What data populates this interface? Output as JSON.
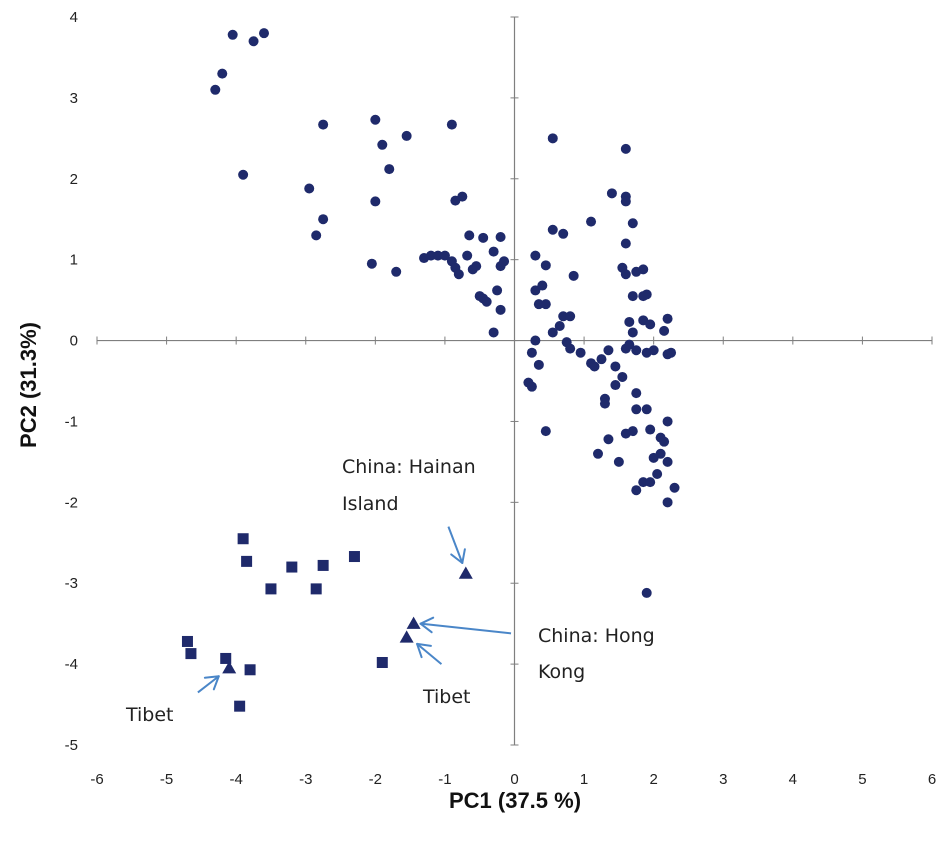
{
  "chart_data": {
    "type": "scatter",
    "title": "",
    "xlabel": "PC1 (37.5 %)",
    "ylabel": "PC2 (31.3%)",
    "xlim": [
      -6,
      6
    ],
    "ylim": [
      -5,
      4
    ],
    "x_ticks": [
      "-6",
      "-5",
      "-4",
      "-3",
      "-2",
      "-1",
      "0",
      "1",
      "2",
      "3",
      "4",
      "5",
      "6"
    ],
    "y_ticks": [
      "4",
      "3",
      "2",
      "1",
      "0",
      "-1",
      "-2",
      "-3",
      "-4",
      "-5"
    ],
    "grid": false,
    "legend": "none",
    "colors": {
      "markers": "#1f2a6b",
      "arrows": "#4a86c8",
      "axes": "#7f7f7f",
      "text": "#222222"
    },
    "series": [
      {
        "marker": "circle",
        "points": [
          [
            -4.3,
            3.1
          ],
          [
            -4.2,
            3.3
          ],
          [
            -4.05,
            3.78
          ],
          [
            -3.75,
            3.7
          ],
          [
            -3.6,
            3.8
          ],
          [
            -3.9,
            2.05
          ],
          [
            -2.75,
            2.67
          ],
          [
            -2.95,
            1.88
          ],
          [
            -2.75,
            1.5
          ],
          [
            -2.85,
            1.3
          ],
          [
            -2.0,
            2.73
          ],
          [
            -1.9,
            2.42
          ],
          [
            -1.8,
            2.12
          ],
          [
            -1.55,
            2.53
          ],
          [
            -2.0,
            1.72
          ],
          [
            -2.05,
            0.95
          ],
          [
            -1.7,
            0.85
          ],
          [
            -0.9,
            2.67
          ],
          [
            -0.75,
            1.78
          ],
          [
            -0.85,
            1.73
          ],
          [
            -1.3,
            1.02
          ],
          [
            -1.2,
            1.05
          ],
          [
            -1.1,
            1.05
          ],
          [
            -1.0,
            1.05
          ],
          [
            -0.9,
            0.98
          ],
          [
            -0.85,
            0.9
          ],
          [
            -0.8,
            0.82
          ],
          [
            -0.65,
            1.3
          ],
          [
            -0.68,
            1.05
          ],
          [
            -0.6,
            0.88
          ],
          [
            -0.55,
            0.92
          ],
          [
            -0.45,
            1.27
          ],
          [
            -0.3,
            1.1
          ],
          [
            -0.2,
            1.28
          ],
          [
            -0.2,
            0.92
          ],
          [
            -0.15,
            0.98
          ],
          [
            -0.25,
            0.62
          ],
          [
            -0.2,
            0.38
          ],
          [
            -0.5,
            0.55
          ],
          [
            -0.45,
            0.52
          ],
          [
            -0.4,
            0.48
          ],
          [
            -0.3,
            0.1
          ],
          [
            0.55,
            2.5
          ],
          [
            0.3,
            1.05
          ],
          [
            0.45,
            0.93
          ],
          [
            0.55,
            1.37
          ],
          [
            0.7,
            1.32
          ],
          [
            0.3,
            0.62
          ],
          [
            0.4,
            0.68
          ],
          [
            0.35,
            0.45
          ],
          [
            0.45,
            0.45
          ],
          [
            0.55,
            0.1
          ],
          [
            0.65,
            0.18
          ],
          [
            0.7,
            0.3
          ],
          [
            0.8,
            0.3
          ],
          [
            0.85,
            0.8
          ],
          [
            0.3,
            0.0
          ],
          [
            0.25,
            -0.15
          ],
          [
            0.35,
            -0.3
          ],
          [
            0.75,
            -0.02
          ],
          [
            0.8,
            -0.1
          ],
          [
            0.95,
            -0.15
          ],
          [
            0.2,
            -0.52
          ],
          [
            0.25,
            -0.57
          ],
          [
            0.45,
            -1.12
          ],
          [
            1.1,
            1.47
          ],
          [
            1.4,
            1.82
          ],
          [
            1.6,
            2.37
          ],
          [
            1.6,
            1.78
          ],
          [
            1.6,
            1.72
          ],
          [
            1.7,
            1.45
          ],
          [
            1.6,
            1.2
          ],
          [
            1.55,
            0.9
          ],
          [
            1.6,
            0.82
          ],
          [
            1.75,
            0.85
          ],
          [
            1.85,
            0.88
          ],
          [
            1.9,
            0.57
          ],
          [
            1.85,
            0.55
          ],
          [
            1.7,
            0.55
          ],
          [
            1.65,
            0.23
          ],
          [
            1.7,
            0.1
          ],
          [
            1.85,
            0.25
          ],
          [
            1.95,
            0.2
          ],
          [
            2.15,
            0.12
          ],
          [
            2.2,
            0.27
          ],
          [
            1.1,
            -0.28
          ],
          [
            1.15,
            -0.32
          ],
          [
            1.25,
            -0.23
          ],
          [
            1.35,
            -0.12
          ],
          [
            1.45,
            -0.32
          ],
          [
            1.6,
            -0.1
          ],
          [
            1.65,
            -0.05
          ],
          [
            1.75,
            -0.12
          ],
          [
            1.9,
            -0.15
          ],
          [
            2.0,
            -0.12
          ],
          [
            2.2,
            -0.17
          ],
          [
            2.25,
            -0.15
          ],
          [
            1.2,
            -1.4
          ],
          [
            1.3,
            -0.72
          ],
          [
            1.3,
            -0.78
          ],
          [
            1.35,
            -1.22
          ],
          [
            1.45,
            -0.55
          ],
          [
            1.55,
            -0.45
          ],
          [
            1.6,
            -1.15
          ],
          [
            1.7,
            -1.12
          ],
          [
            1.75,
            -0.65
          ],
          [
            1.75,
            -0.85
          ],
          [
            1.9,
            -0.85
          ],
          [
            1.95,
            -1.1
          ],
          [
            2.1,
            -1.2
          ],
          [
            2.15,
            -1.25
          ],
          [
            2.2,
            -1.0
          ],
          [
            2.05,
            -1.65
          ],
          [
            2.1,
            -1.4
          ],
          [
            2.2,
            -1.5
          ],
          [
            1.5,
            -1.5
          ],
          [
            1.75,
            -1.85
          ],
          [
            1.85,
            -1.75
          ],
          [
            1.95,
            -1.75
          ],
          [
            2.0,
            -1.45
          ],
          [
            2.2,
            -2.0
          ],
          [
            2.3,
            -1.82
          ],
          [
            1.9,
            -3.12
          ]
        ]
      },
      {
        "marker": "square",
        "points": [
          [
            -3.9,
            -2.45
          ],
          [
            -3.85,
            -2.73
          ],
          [
            -3.5,
            -3.07
          ],
          [
            -3.2,
            -2.8
          ],
          [
            -2.75,
            -2.78
          ],
          [
            -2.85,
            -3.07
          ],
          [
            -2.3,
            -2.67
          ],
          [
            -4.7,
            -3.72
          ],
          [
            -4.65,
            -3.87
          ],
          [
            -4.15,
            -3.93
          ],
          [
            -3.8,
            -4.07
          ],
          [
            -3.95,
            -4.52
          ],
          [
            -1.9,
            -3.98
          ]
        ]
      },
      {
        "marker": "triangle",
        "points": [
          [
            -0.7,
            -2.88
          ],
          [
            -1.45,
            -3.5
          ],
          [
            -1.55,
            -3.67
          ],
          [
            -4.1,
            -4.05
          ]
        ]
      }
    ],
    "annotations": [
      {
        "lines": [
          "China: Hainan",
          "Island"
        ],
        "arrows": [
          {
            "from": [
              -0.95,
              -2.3
            ],
            "to": [
              -0.75,
              -2.75
            ]
          }
        ]
      },
      {
        "lines": [
          "China: Hong",
          "Kong"
        ],
        "arrows": [
          {
            "from": [
              -0.05,
              -3.62
            ],
            "to": [
              -1.35,
              -3.5
            ]
          }
        ]
      },
      {
        "lines": [
          "Tibet"
        ],
        "arrows": [
          {
            "from": [
              -1.05,
              -4.0
            ],
            "to": [
              -1.4,
              -3.75
            ]
          }
        ]
      },
      {
        "lines": [
          "Tibet"
        ],
        "arrows": [
          {
            "from": [
              -4.55,
              -4.35
            ],
            "to": [
              -4.25,
              -4.15
            ]
          }
        ]
      }
    ]
  }
}
